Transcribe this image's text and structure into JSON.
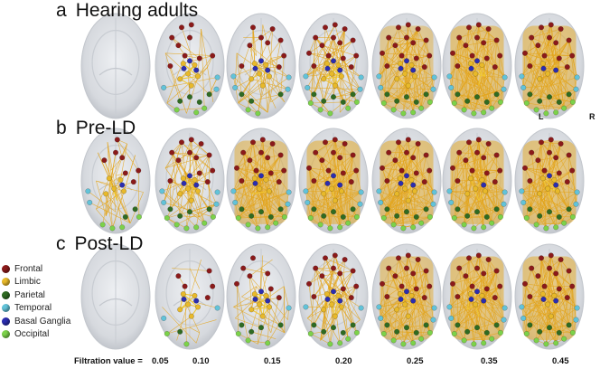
{
  "rows": [
    {
      "letter": "a",
      "title": "Hearing adults",
      "densities": [
        0,
        0.25,
        0.5,
        0.75,
        0.9,
        1,
        1
      ],
      "limbic": [
        0,
        0.6,
        0.5,
        0.8,
        0.5,
        0.3,
        0.3
      ]
    },
    {
      "letter": "b",
      "title": "Pre-LD",
      "densities": [
        0.35,
        0.7,
        0.95,
        1,
        1,
        1,
        1
      ],
      "limbic": [
        0.3,
        0.4,
        0.3,
        0.3,
        0.3,
        0.3,
        0.3
      ]
    },
    {
      "letter": "c",
      "title": "Post-LD",
      "densities": [
        0,
        0.1,
        0.35,
        0.7,
        0.95,
        1,
        1
      ],
      "limbic": [
        0,
        0.5,
        0.8,
        0.9,
        0.4,
        0.3,
        0.3
      ]
    }
  ],
  "legend": [
    {
      "label": "Frontal",
      "color": "#8b1a1a"
    },
    {
      "label": "Limbic",
      "color": "#e8b92a"
    },
    {
      "label": "Parietal",
      "color": "#2f6b22"
    },
    {
      "label": "Temporal",
      "color": "#62c3d9"
    },
    {
      "label": "Basal Ganglia",
      "color": "#2b2db0"
    },
    {
      "label": "Occipital",
      "color": "#7cd24a"
    }
  ],
  "edge_color": "#e3a51c",
  "filtration": {
    "prefix": "Filtration value =",
    "values": [
      "0.05",
      "0.10",
      "0.15",
      "0.20",
      "0.25",
      "0.35",
      "0.45"
    ]
  },
  "orientation": {
    "left": "L",
    "right": "R"
  }
}
